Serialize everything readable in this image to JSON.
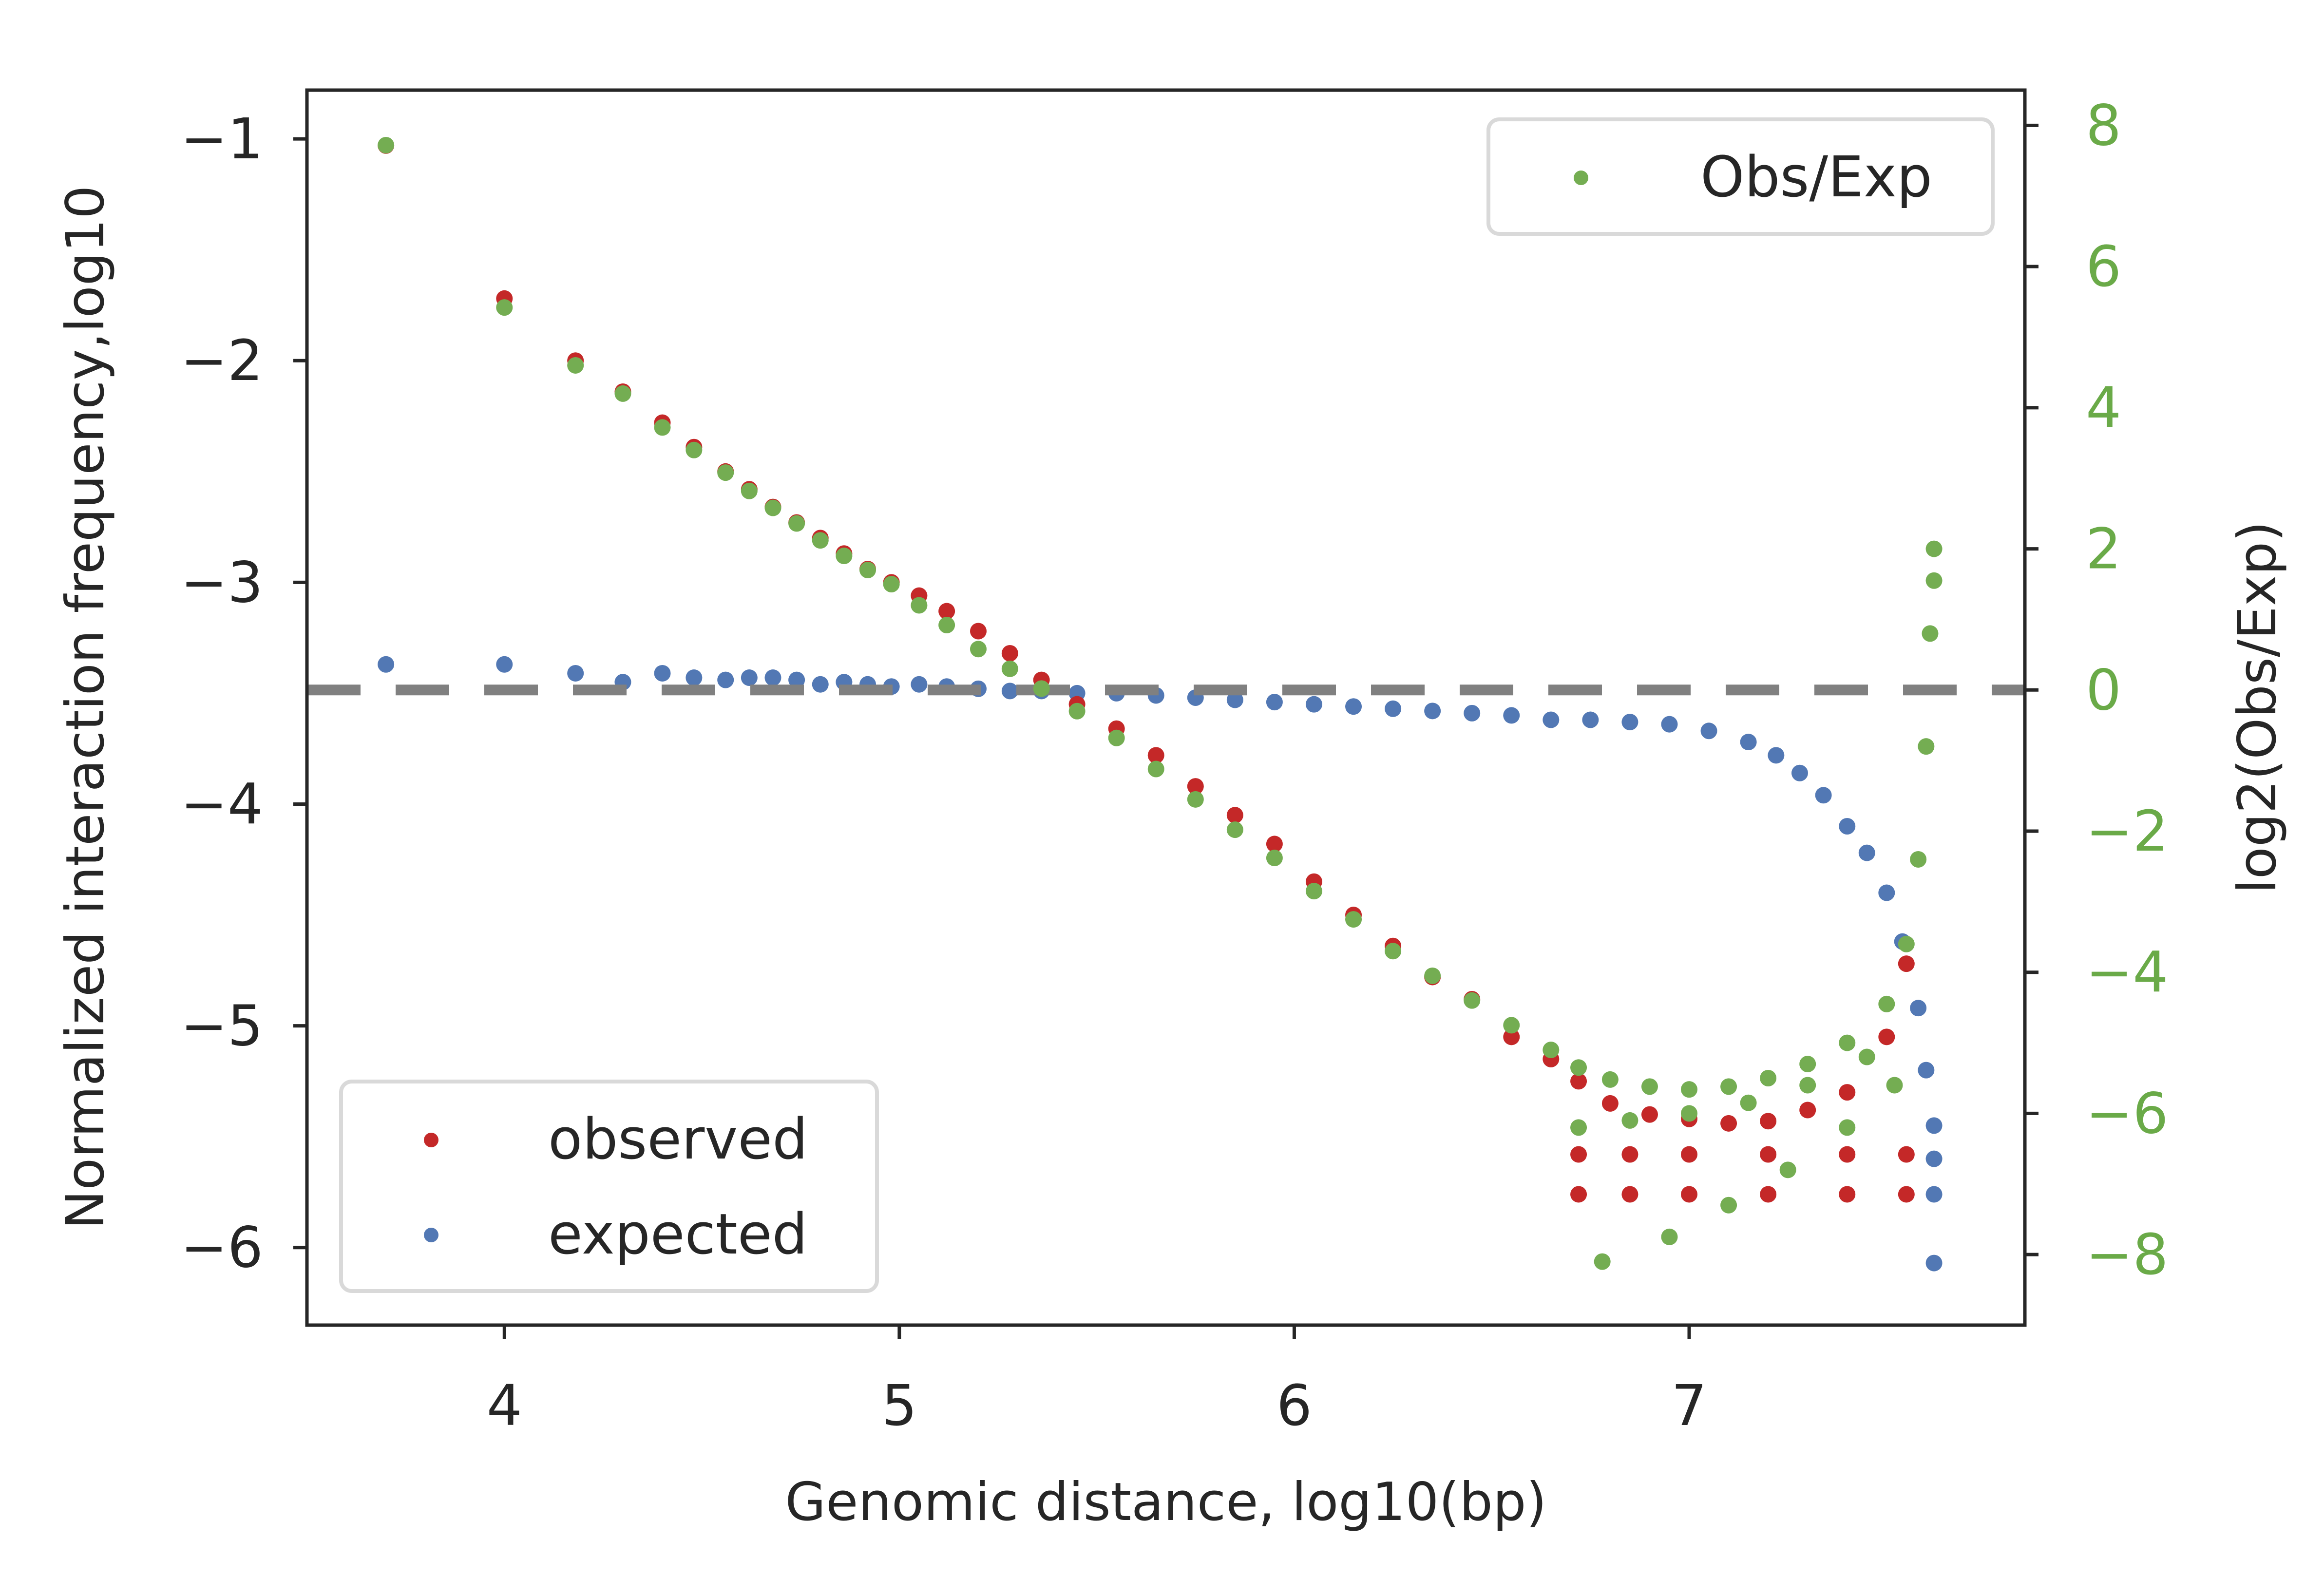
{
  "chart_data": {
    "type": "scatter",
    "title": "",
    "xlabel": "Genomic distance, log10(bp)",
    "ylabel": "Normalized interaction frequency,log10",
    "y2label": "log2(Obs/Exp)",
    "xlim": [
      3.5,
      7.85
    ],
    "ylim": [
      -6.35,
      -0.78
    ],
    "y2lim": [
      -9.0,
      8.5
    ],
    "x_ticks": [
      4,
      5,
      6,
      7
    ],
    "x_tick_labels": [
      "4",
      "5",
      "6",
      "7"
    ],
    "y_ticks": [
      -1,
      -2,
      -3,
      -4,
      -5,
      -6
    ],
    "y_tick_labels": [
      "−1",
      "−2",
      "−3",
      "−4",
      "−5",
      "−6"
    ],
    "y2_ticks": [
      8,
      6,
      4,
      2,
      0,
      -2,
      -4,
      -6,
      -8
    ],
    "y2_tick_labels": [
      "8",
      "6",
      "4",
      "2",
      "0",
      "−2",
      "−4",
      "−6",
      "−8"
    ],
    "reference_line": {
      "axis": "y2",
      "value": 0,
      "style": "dashed",
      "color": "#808080"
    },
    "colors": {
      "observed": "#c42828",
      "expected": "#5278b4",
      "obs_exp": "#74ad52",
      "right_axis": "#6aaa48",
      "axes": "#262626"
    },
    "legends": [
      {
        "placement": "lower-left",
        "entries": [
          "observed",
          "expected"
        ]
      },
      {
        "placement": "upper-right",
        "entries": [
          "Obs/Exp"
        ]
      }
    ],
    "series": [
      {
        "name": "observed",
        "axis": "left",
        "color": "#c42828",
        "x": [
          3.7,
          4.0,
          4.18,
          4.3,
          4.4,
          4.48,
          4.56,
          4.62,
          4.68,
          4.74,
          4.8,
          4.86,
          4.92,
          4.98,
          5.05,
          5.12,
          5.2,
          5.28,
          5.36,
          5.45,
          5.55,
          5.65,
          5.75,
          5.85,
          5.95,
          6.05,
          6.15,
          6.25,
          6.35,
          6.45,
          6.55,
          6.65,
          6.72,
          6.8,
          6.9,
          7.0,
          7.1,
          7.2,
          7.3,
          7.4,
          7.5,
          7.55,
          6.72,
          6.85,
          7.0,
          7.2,
          7.4,
          7.55,
          6.72,
          6.85,
          7.0,
          7.2,
          7.4,
          7.55
        ],
        "y": [
          -1.03,
          -1.72,
          -2.0,
          -2.14,
          -2.28,
          -2.39,
          -2.5,
          -2.58,
          -2.66,
          -2.73,
          -2.8,
          -2.87,
          -2.94,
          -3.0,
          -3.06,
          -3.13,
          -3.22,
          -3.32,
          -3.44,
          -3.55,
          -3.66,
          -3.78,
          -3.92,
          -4.05,
          -4.18,
          -4.35,
          -4.5,
          -4.64,
          -4.78,
          -4.88,
          -5.05,
          -5.15,
          -5.25,
          -5.35,
          -5.4,
          -5.42,
          -5.44,
          -5.43,
          -5.38,
          -5.3,
          -5.05,
          -4.72,
          -5.58,
          -5.58,
          -5.58,
          -5.58,
          -5.58,
          -5.58,
          -5.76,
          -5.76,
          -5.76,
          -5.76,
          -5.76,
          -5.76
        ]
      },
      {
        "name": "expected",
        "axis": "left",
        "color": "#5278b4",
        "x": [
          3.7,
          4.0,
          4.18,
          4.3,
          4.4,
          4.48,
          4.56,
          4.62,
          4.68,
          4.74,
          4.8,
          4.86,
          4.92,
          4.98,
          5.05,
          5.12,
          5.2,
          5.28,
          5.36,
          5.45,
          5.55,
          5.65,
          5.75,
          5.85,
          5.95,
          6.05,
          6.15,
          6.25,
          6.35,
          6.45,
          6.55,
          6.65,
          6.75,
          6.85,
          6.95,
          7.05,
          7.15,
          7.22,
          7.28,
          7.34,
          7.4,
          7.45,
          7.5,
          7.54,
          7.58,
          7.6,
          7.62,
          7.62,
          7.62,
          7.62
        ],
        "y": [
          -3.37,
          -3.37,
          -3.41,
          -3.45,
          -3.41,
          -3.43,
          -3.44,
          -3.43,
          -3.43,
          -3.44,
          -3.46,
          -3.45,
          -3.46,
          -3.47,
          -3.46,
          -3.47,
          -3.48,
          -3.49,
          -3.49,
          -3.5,
          -3.5,
          -3.51,
          -3.52,
          -3.53,
          -3.54,
          -3.55,
          -3.56,
          -3.57,
          -3.58,
          -3.59,
          -3.6,
          -3.62,
          -3.62,
          -3.63,
          -3.64,
          -3.67,
          -3.72,
          -3.78,
          -3.86,
          -3.96,
          -4.1,
          -4.22,
          -4.4,
          -4.62,
          -4.92,
          -5.2,
          -5.45,
          -5.6,
          -5.76,
          -6.07
        ]
      },
      {
        "name": "Obs/Exp",
        "axis": "right",
        "color": "#74ad52",
        "x": [
          3.7,
          4.0,
          4.18,
          4.3,
          4.4,
          4.48,
          4.56,
          4.62,
          4.68,
          4.74,
          4.8,
          4.86,
          4.92,
          4.98,
          5.05,
          5.12,
          5.2,
          5.28,
          5.36,
          5.45,
          5.55,
          5.65,
          5.75,
          5.85,
          5.95,
          6.05,
          6.15,
          6.25,
          6.35,
          6.45,
          6.55,
          6.65,
          6.72,
          6.8,
          6.9,
          7.0,
          7.1,
          7.2,
          7.3,
          7.4,
          7.5,
          7.55,
          7.58,
          7.6,
          7.61,
          7.62,
          7.62,
          6.72,
          6.85,
          7.0,
          7.15,
          7.3,
          7.45,
          6.78,
          6.95,
          7.1,
          7.25,
          7.4,
          7.52
        ],
        "y": [
          7.72,
          5.42,
          4.6,
          4.2,
          3.72,
          3.4,
          3.08,
          2.82,
          2.58,
          2.36,
          2.12,
          1.9,
          1.7,
          1.5,
          1.2,
          0.92,
          0.58,
          0.3,
          0.02,
          -0.3,
          -0.68,
          -1.12,
          -1.55,
          -1.98,
          -2.38,
          -2.85,
          -3.25,
          -3.7,
          -4.05,
          -4.4,
          -4.75,
          -5.1,
          -5.35,
          -5.52,
          -5.62,
          -5.66,
          -5.62,
          -5.5,
          -5.3,
          -5.0,
          -4.45,
          -3.6,
          -2.4,
          -0.8,
          0.8,
          1.55,
          2.0,
          -6.2,
          -6.1,
          -6.0,
          -5.85,
          -5.6,
          -5.2,
          -8.1,
          -7.75,
          -7.3,
          -6.8,
          -6.2,
          -5.6
        ]
      }
    ]
  }
}
